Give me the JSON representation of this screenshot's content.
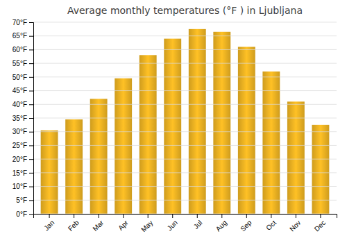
{
  "chart_data": {
    "type": "bar",
    "title": "Average monthly temperatures (°F ) in Ljubljana",
    "categories": [
      "Jan",
      "Feb",
      "Mar",
      "Apr",
      "May",
      "Jun",
      "Jul",
      "Aug",
      "Sep",
      "Oct",
      "Nov",
      "Dec"
    ],
    "values": [
      30.5,
      34.5,
      42.0,
      49.5,
      58.0,
      64.0,
      67.5,
      66.5,
      61.0,
      52.0,
      41.0,
      32.5
    ],
    "color": "#FFC125",
    "ylim": [
      0,
      70
    ],
    "yticks": [
      {
        "value": 0,
        "label": "0°F"
      },
      {
        "value": 5,
        "label": "5°F"
      },
      {
        "value": 10,
        "label": "10°F"
      },
      {
        "value": 15,
        "label": "15°F"
      },
      {
        "value": 20,
        "label": "20°F"
      },
      {
        "value": 25,
        "label": "25°F"
      },
      {
        "value": 30,
        "label": "30°F"
      },
      {
        "value": 35,
        "label": "35°F"
      },
      {
        "value": 40,
        "label": "40°F"
      },
      {
        "value": 45,
        "label": "45°F"
      },
      {
        "value": 50,
        "label": "50°F"
      },
      {
        "value": 55,
        "label": "55°F"
      },
      {
        "value": 60,
        "label": "60°F"
      },
      {
        "value": 65,
        "label": "65°F"
      },
      {
        "value": 70,
        "label": "70°F"
      }
    ],
    "grid": true
  }
}
